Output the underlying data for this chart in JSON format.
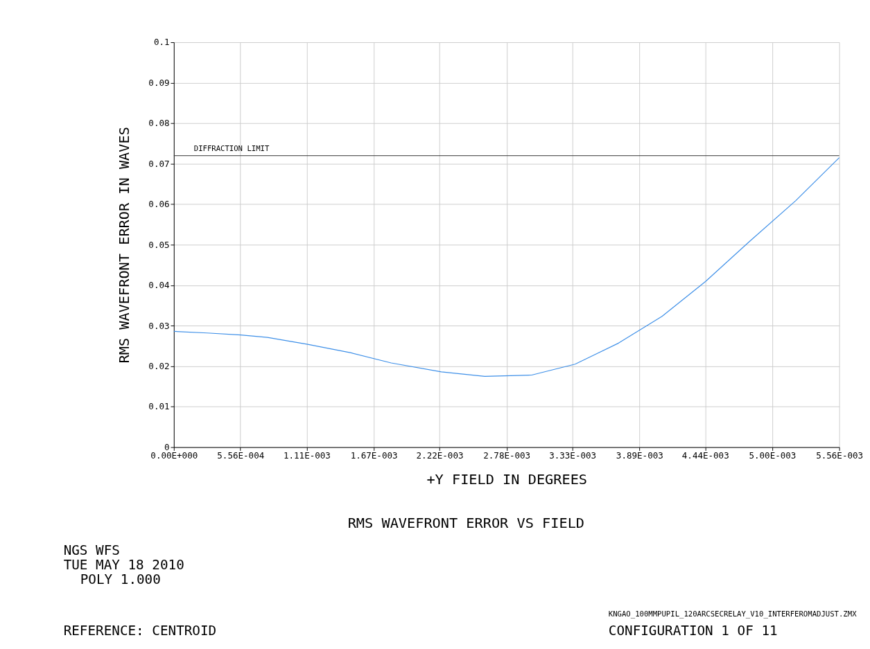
{
  "chart_data": {
    "type": "line",
    "title": "RMS WAVEFRONT ERROR VS FIELD",
    "xlabel": "+Y FIELD IN DEGREES",
    "ylabel": "RMS WAVEFRONT ERROR IN WAVES",
    "series": [
      {
        "color": "#3d8fe8",
        "x": [
          0,
          0.000279,
          0.000559,
          0.000782,
          0.001118,
          0.001481,
          0.001816,
          0.002235,
          0.002598,
          0.00299,
          0.003353,
          0.003716,
          0.004079,
          0.004442,
          0.004806,
          0.005197,
          0.00556
        ],
        "values": [
          0.0286,
          0.0282,
          0.0277,
          0.0271,
          0.0254,
          0.0233,
          0.0208,
          0.0186,
          0.0175,
          0.0178,
          0.0205,
          0.0257,
          0.0323,
          0.0409,
          0.0507,
          0.0609,
          0.0715
        ]
      }
    ],
    "xlim": [
      0,
      0.00556
    ],
    "ylim": [
      0,
      0.1
    ],
    "xticks": [
      {
        "value": 0,
        "label": "0.00E+000"
      },
      {
        "value": 0.000556,
        "label": "5.56E-004"
      },
      {
        "value": 0.00111,
        "label": "1.11E-003"
      },
      {
        "value": 0.00167,
        "label": "1.67E-003"
      },
      {
        "value": 0.00222,
        "label": "2.22E-003"
      },
      {
        "value": 0.00278,
        "label": "2.78E-003"
      },
      {
        "value": 0.00333,
        "label": "3.33E-003"
      },
      {
        "value": 0.00389,
        "label": "3.89E-003"
      },
      {
        "value": 0.00444,
        "label": "4.44E-003"
      },
      {
        "value": 0.005,
        "label": "5.00E-003"
      },
      {
        "value": 0.00556,
        "label": "5.56E-003"
      }
    ],
    "yticks": [
      0,
      0.01,
      0.02,
      0.03,
      0.04,
      0.05,
      0.06,
      0.07,
      0.08,
      0.09,
      0.1
    ],
    "grid": true,
    "ref_lines": [
      {
        "axis": "y",
        "value": 0.072,
        "label": "DIFFRACTION LIMIT",
        "color": "#333333"
      }
    ],
    "annotations": [
      "NGS WFS",
      "TUE MAY 18 2010",
      "POLY 1.000",
      "REFERENCE: CENTROID",
      "KNGAO_100MMPUPIL_120ARCSECRELAY_V10_INTERFEROMADJUST.ZMX",
      "CONFIGURATION 1 OF 11"
    ]
  }
}
